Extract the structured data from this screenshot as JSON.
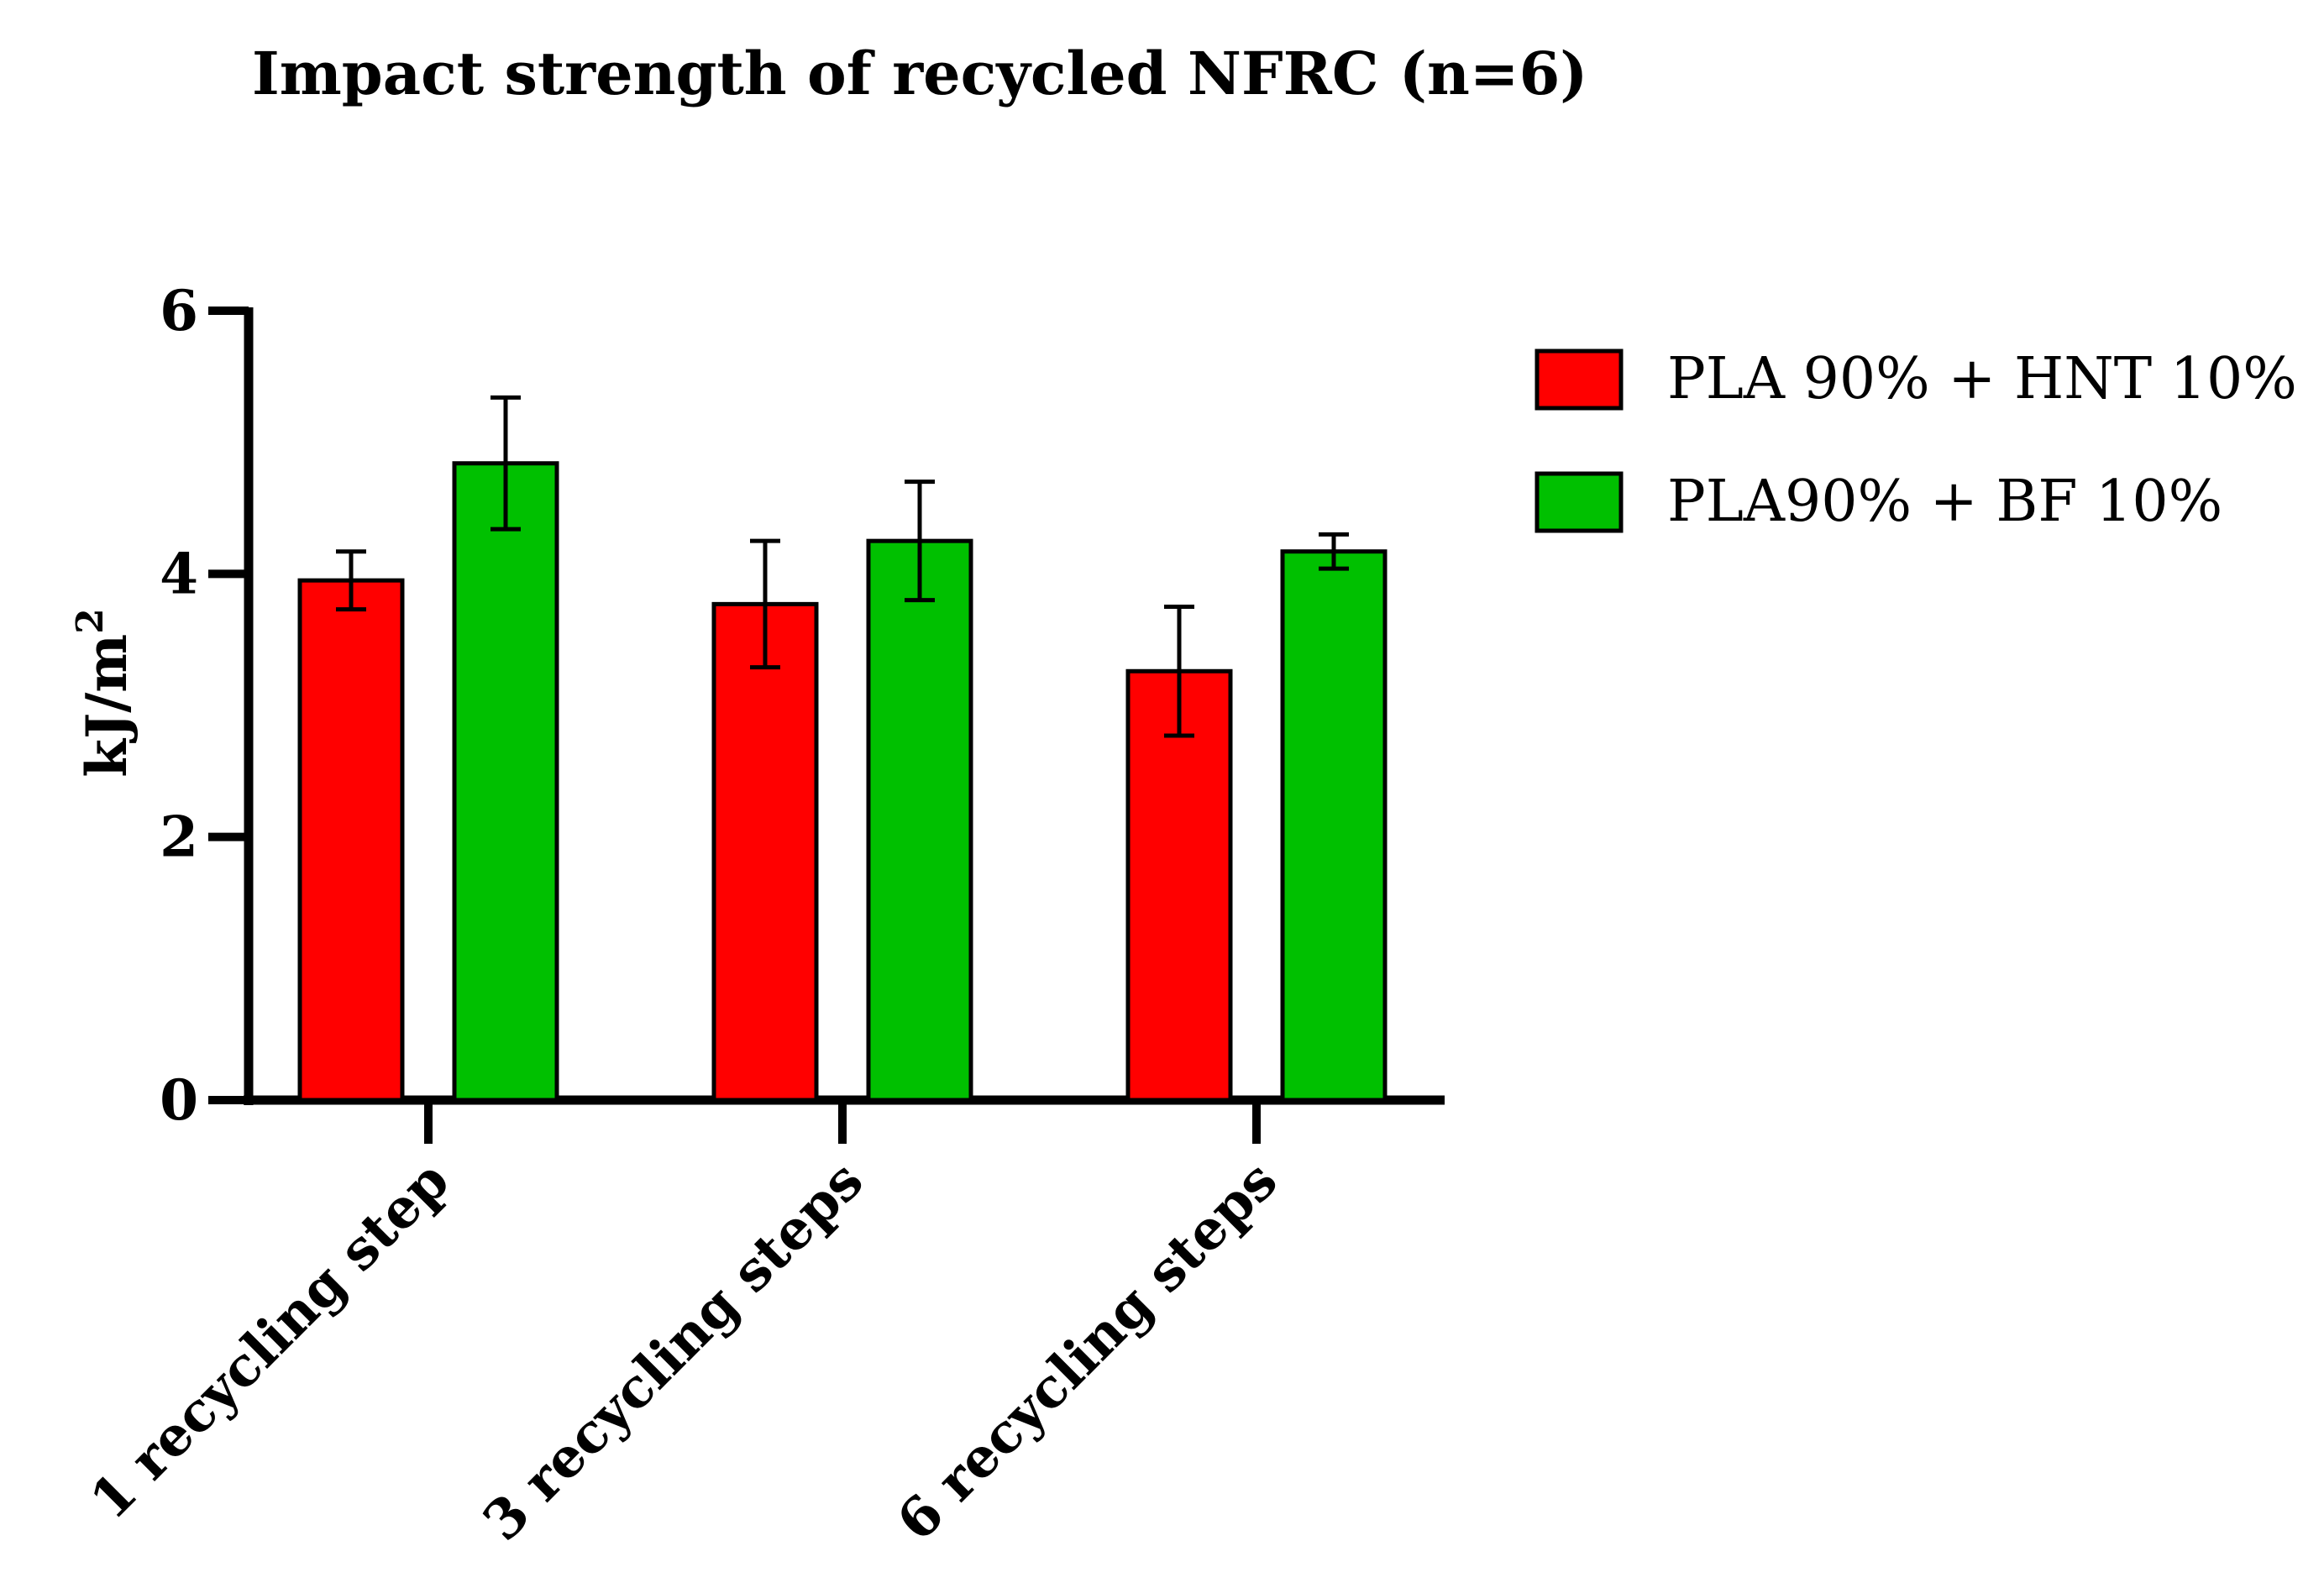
{
  "chart_data": {
    "type": "bar",
    "title": "Impact strength of recycled NFRC (n=6)",
    "xlabel": "",
    "ylabel": "kJ/m",
    "ylabel_superscript": "2",
    "ylim": [
      0,
      6
    ],
    "yticks": [
      "0",
      "2",
      "4",
      "6"
    ],
    "categories": [
      "1 recycling step",
      "3 recycling steps",
      "6 recycling steps"
    ],
    "series": [
      {
        "name": "PLA 90% + HNT 10%",
        "color": "#ff0000",
        "values": [
          3.95,
          3.77,
          3.26
        ],
        "errors": [
          0.22,
          0.48,
          0.49
        ]
      },
      {
        "name": "PLA90% + BF 10%",
        "color": "#00c000",
        "values": [
          4.84,
          4.25,
          4.17
        ],
        "errors": [
          0.5,
          0.45,
          0.13
        ]
      }
    ],
    "legend_position": "top-right",
    "grid": false
  }
}
